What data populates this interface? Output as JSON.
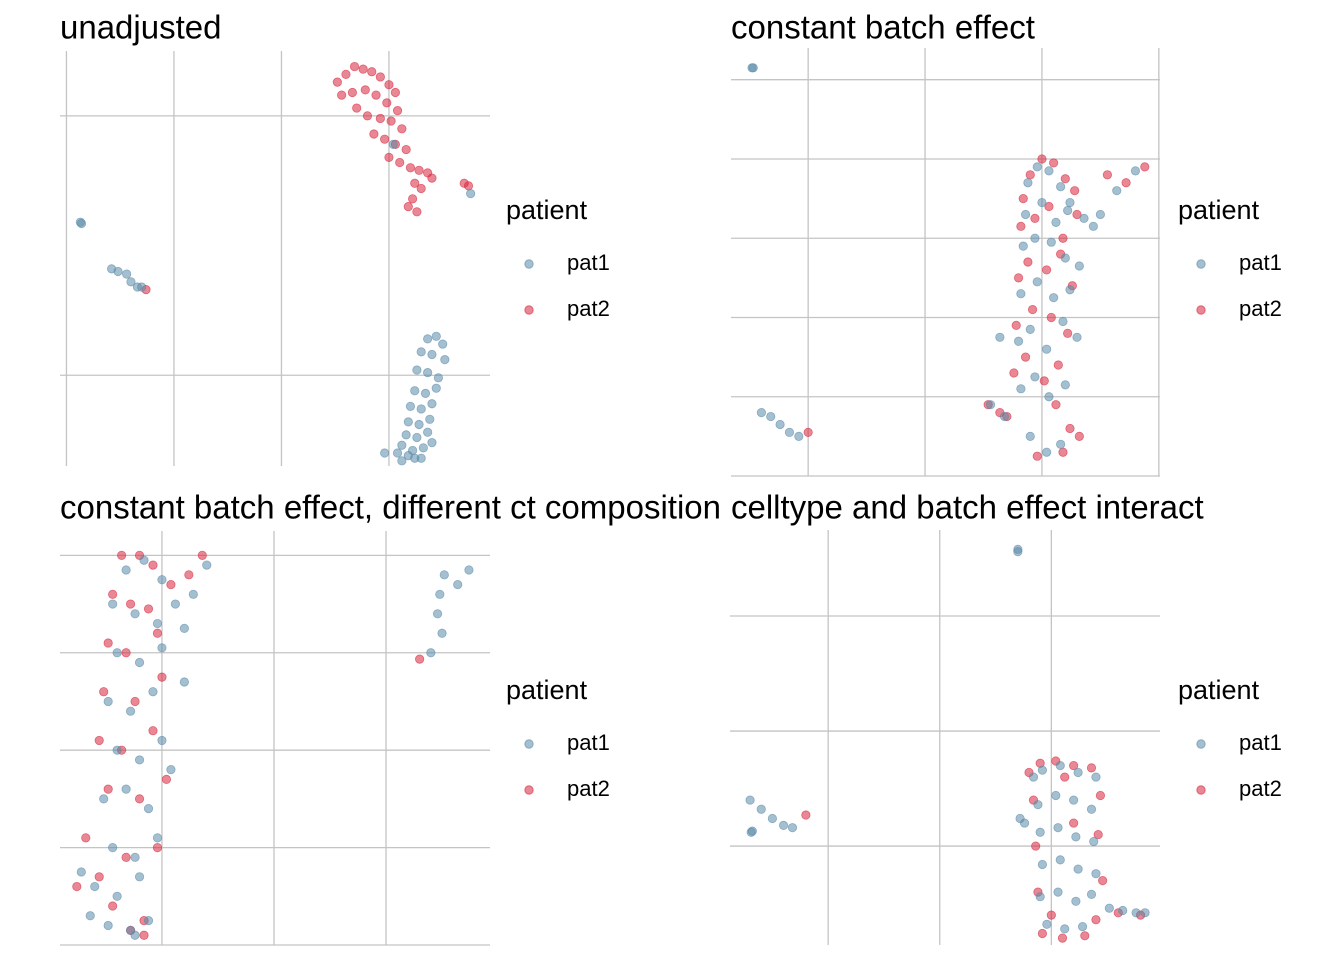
{
  "chart_data": [
    {
      "type": "scatter",
      "title": "unadjusted",
      "legend_title": "patient",
      "grid": true,
      "xlim": [
        -10.3,
        9.7
      ],
      "ylim": [
        -3.5,
        12.5
      ],
      "xticks": [
        -10,
        -5,
        0,
        5
      ],
      "yticks": [
        0,
        10
      ],
      "series": [
        {
          "name": "pat1",
          "color": "#5a8aa8",
          "x": [
            6.8,
            7.2,
            7.5,
            6.5,
            7.0,
            7.6,
            6.3,
            6.8,
            7.3,
            6.2,
            6.7,
            7.2,
            6.0,
            6.5,
            7.0,
            5.9,
            6.4,
            6.9,
            5.8,
            6.3,
            6.8,
            5.6,
            6.1,
            6.6,
            7.0,
            5.4,
            5.9,
            6.5,
            5.6,
            6.2,
            4.8,
            8.8,
            -9.35,
            -9.3,
            -7.9,
            -7.6,
            -7.2,
            -7.0,
            -6.7,
            -6.5,
            5.2
          ],
          "y": [
            1.4,
            1.5,
            1.2,
            0.9,
            0.8,
            0.6,
            0.2,
            0.1,
            -0.1,
            -0.6,
            -0.7,
            -0.5,
            -1.2,
            -1.3,
            -1.1,
            -1.8,
            -1.9,
            -1.7,
            -2.3,
            -2.4,
            -2.2,
            -2.7,
            -2.9,
            -2.8,
            -2.6,
            -3.0,
            -3.1,
            -3.2,
            -3.3,
            -3.2,
            -3.0,
            7.0,
            5.9,
            5.85,
            4.1,
            4.0,
            3.9,
            3.6,
            3.4,
            3.4,
            8.9
          ]
        },
        {
          "name": "pat2",
          "color": "#d7263d",
          "x": [
            2.6,
            3.0,
            3.4,
            3.8,
            4.2,
            4.6,
            5.0,
            5.3,
            2.8,
            3.3,
            3.9,
            4.4,
            4.9,
            5.4,
            3.5,
            4.0,
            4.6,
            5.1,
            5.6,
            4.3,
            4.8,
            5.3,
            5.8,
            5.0,
            5.5,
            6.0,
            6.4,
            6.8,
            7.0,
            6.2,
            6.5,
            6.1,
            5.9,
            6.3,
            8.5,
            8.7,
            -6.3
          ],
          "y": [
            11.3,
            11.6,
            11.9,
            11.8,
            11.7,
            11.5,
            11.2,
            10.9,
            10.8,
            10.9,
            11.0,
            10.8,
            10.5,
            10.2,
            10.3,
            10.0,
            9.9,
            9.8,
            9.5,
            9.3,
            9.1,
            8.9,
            8.7,
            8.4,
            8.2,
            8.0,
            7.9,
            7.8,
            7.6,
            7.4,
            7.2,
            6.8,
            6.5,
            6.3,
            7.4,
            7.3,
            3.3
          ]
        }
      ]
    },
    {
      "type": "scatter",
      "title": "constant batch effect",
      "legend_title": "patient",
      "grid": true,
      "xlim": [
        -13.3,
        5.05
      ],
      "ylim": [
        0,
        10.8
      ],
      "xticks": [
        -10,
        -5,
        0,
        5
      ],
      "yticks": [
        0,
        2,
        4,
        6,
        8,
        10
      ],
      "series": [
        {
          "name": "pat1",
          "color": "#5a8aa8",
          "x": [
            -0.6,
            -0.2,
            0.3,
            0.8,
            1.2,
            -0.7,
            0.0,
            0.6,
            1.1,
            1.8,
            2.2,
            -0.8,
            -0.3,
            0.4,
            1.0,
            1.6,
            -0.9,
            -0.2,
            0.5,
            1.2,
            -1.0,
            -0.5,
            0.2,
            0.9,
            1.5,
            -0.9,
            -0.3,
            0.3,
            1.0,
            -0.5,
            0.2,
            0.8,
            -1.8,
            -2.2,
            -1.6,
            2.5,
            3.2,
            4.0,
            -12.4,
            -12.35,
            -12.0,
            -11.6,
            -11.2,
            -10.8,
            -10.4
          ],
          "y": [
            7.4,
            7.8,
            7.7,
            7.3,
            6.9,
            6.6,
            6.9,
            6.4,
            6.7,
            6.5,
            6.3,
            5.8,
            6.0,
            5.9,
            5.5,
            5.3,
            4.6,
            4.9,
            4.5,
            4.7,
            3.4,
            3.7,
            3.2,
            3.9,
            3.5,
            2.2,
            2.5,
            2.0,
            2.3,
            1.0,
            0.6,
            0.8,
            3.5,
            1.8,
            1.5,
            6.6,
            7.2,
            7.7,
            10.3,
            10.3,
            1.6,
            1.5,
            1.3,
            1.1,
            1.0
          ]
        },
        {
          "name": "pat2",
          "color": "#d7263d",
          "x": [
            -0.8,
            -0.5,
            0.0,
            0.5,
            1.0,
            1.4,
            -0.9,
            -0.3,
            0.3,
            0.9,
            1.5,
            -1.0,
            -0.6,
            0.2,
            0.8,
            1.3,
            -1.1,
            -0.4,
            0.4,
            1.1,
            -1.2,
            -0.7,
            0.1,
            0.7,
            -2.3,
            -1.8,
            -1.5,
            0.6,
            1.2,
            1.6,
            2.8,
            3.6,
            4.4,
            -0.2,
            0.9,
            -10.0
          ],
          "y": [
            7.0,
            7.6,
            8.0,
            7.9,
            7.5,
            7.2,
            6.3,
            6.5,
            6.8,
            6.0,
            6.6,
            5.0,
            5.4,
            5.2,
            5.6,
            4.8,
            3.8,
            4.2,
            4.0,
            3.6,
            2.6,
            3.0,
            2.4,
            2.8,
            1.8,
            1.6,
            1.5,
            1.8,
            1.2,
            1.0,
            7.6,
            7.4,
            7.8,
            0.5,
            0.6,
            1.1
          ]
        }
      ]
    },
    {
      "type": "scatter",
      "title": "constant batch effect, different ct composition",
      "legend_title": "patient",
      "grid": true,
      "xlim": [
        -9.55,
        9.64
      ],
      "ylim": [
        0,
        8.5
      ],
      "xticks": [
        -5,
        0,
        5
      ],
      "yticks": [
        0,
        2,
        4,
        6,
        8
      ],
      "series": [
        {
          "name": "pat1",
          "color": "#5a8aa8",
          "x": [
            -6.6,
            -5.8,
            -5.0,
            -7.2,
            -6.2,
            -5.2,
            -4.4,
            -7.0,
            -6.0,
            -5.0,
            -7.4,
            -6.4,
            -5.4,
            -4.0,
            -7.0,
            -6.0,
            -5.0,
            -7.6,
            -6.6,
            -5.6,
            -4.6,
            -7.2,
            -6.2,
            -5.2,
            -8.6,
            -8.0,
            -7.0,
            -6.0,
            -8.2,
            -7.4,
            -6.4,
            -5.6,
            -4.0,
            -3.6,
            -3.0,
            -6.2,
            7.6,
            7.4,
            7.3,
            7.5,
            8.2,
            8.7,
            7.0
          ],
          "y": [
            7.7,
            7.9,
            7.5,
            7.0,
            6.8,
            6.6,
            7.0,
            6.0,
            5.8,
            6.1,
            5.0,
            4.8,
            5.2,
            5.4,
            4.0,
            3.8,
            4.2,
            3.0,
            3.2,
            2.8,
            3.6,
            2.0,
            1.8,
            2.2,
            1.5,
            1.2,
            1.0,
            1.4,
            0.6,
            0.4,
            0.3,
            0.5,
            6.5,
            7.2,
            7.8,
            0.2,
            7.6,
            7.2,
            6.8,
            6.4,
            7.4,
            7.7,
            6.0
          ]
        },
        {
          "name": "pat2",
          "color": "#d7263d",
          "x": [
            -6.8,
            -6.0,
            -5.4,
            -7.2,
            -6.4,
            -5.6,
            -7.4,
            -6.6,
            -5.2,
            -7.6,
            -6.2,
            -5.0,
            -7.8,
            -6.8,
            -5.4,
            -7.4,
            -6.0,
            -4.8,
            -8.4,
            -7.8,
            -6.6,
            -5.2,
            -8.8,
            -7.2,
            -5.8,
            -4.6,
            -3.8,
            -3.2,
            -6.4,
            -5.8,
            6.5
          ],
          "y": [
            8.0,
            8.0,
            7.8,
            7.2,
            7.0,
            6.9,
            6.2,
            6.0,
            6.4,
            5.2,
            5.0,
            5.5,
            4.2,
            4.0,
            4.4,
            3.2,
            3.0,
            3.4,
            2.2,
            1.4,
            1.8,
            2.0,
            1.2,
            0.8,
            0.5,
            7.4,
            7.6,
            8.0,
            0.3,
            0.2,
            5.87
          ]
        }
      ]
    },
    {
      "type": "scatter",
      "title": "celltype and batch effect interact",
      "legend_title": "patient",
      "grid": true,
      "xlim": [
        -9.4,
        9.87
      ],
      "ylim": [
        -4.3,
        13.74
      ],
      "xticks": [
        -5,
        0,
        5
      ],
      "yticks": [
        0,
        5,
        10
      ],
      "series": [
        {
          "name": "pat1",
          "color": "#5a8aa8",
          "x": [
            4.6,
            5.4,
            6.2,
            7.0,
            4.4,
            5.2,
            6.0,
            6.8,
            4.5,
            5.3,
            6.1,
            6.9,
            4.6,
            5.4,
            6.2,
            7.0,
            4.5,
            5.3,
            6.1,
            6.8,
            4.8,
            5.6,
            6.4,
            4.2,
            7.6,
            8.2,
            8.8,
            9.2,
            3.8,
            3.6,
            3.5,
            3.5,
            -8.5,
            -8.0,
            -7.5,
            -7.0,
            -6.6,
            -8.45,
            -8.4
          ],
          "y": [
            3.3,
            3.5,
            3.2,
            3.0,
            1.8,
            2.2,
            2.0,
            1.6,
            0.6,
            0.8,
            0.4,
            0.2,
            -0.8,
            -0.6,
            -1.0,
            -1.2,
            -2.2,
            -2.0,
            -2.4,
            -2.1,
            -3.4,
            -3.6,
            -3.5,
            3.0,
            -2.7,
            -2.8,
            -2.9,
            -2.9,
            1.0,
            1.2,
            12.9,
            12.8,
            2.0,
            1.6,
            1.2,
            0.9,
            0.8,
            0.6,
            0.65
          ]
        },
        {
          "name": "pat2",
          "color": "#d7263d",
          "x": [
            4.5,
            5.2,
            6.0,
            6.8,
            4.2,
            7.2,
            4.3,
            7.1,
            4.4,
            7.3,
            4.6,
            5.5,
            6.5,
            7.0,
            5.0,
            6.0,
            8.0,
            9.0,
            -6.0,
            5.6,
            4.0
          ],
          "y": [
            3.6,
            3.7,
            3.5,
            3.4,
            2.0,
            2.2,
            0.0,
            0.5,
            -2.0,
            -1.5,
            -3.8,
            -4.0,
            -3.9,
            -3.2,
            -3.0,
            1.0,
            -2.9,
            -3.0,
            1.35,
            3.0,
            3.2
          ]
        }
      ]
    }
  ]
}
